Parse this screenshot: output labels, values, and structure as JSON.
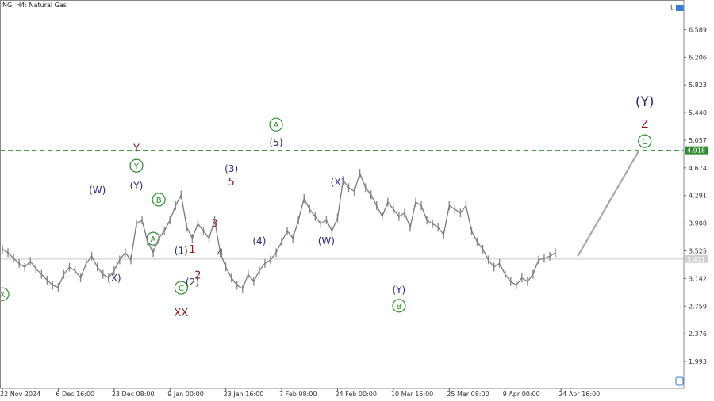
{
  "chart_data": {
    "type": "line",
    "title": "NG, H4:  Natural Gas",
    "ylim": [
      1.62,
      7.0
    ],
    "yticks": [
      "6.589",
      "6.206",
      "5.823",
      "5.440",
      "5.057",
      "4.674",
      "4.291",
      "3.908",
      "3.525",
      "3.142",
      "2.759",
      "2.376",
      "1.993"
    ],
    "xticks": [
      "22 Nov 2024",
      "6 Dec 16:00",
      "23 Dec 08:00",
      "9 Jan 00:00",
      "23 Jan 16:00",
      "7 Feb 08:00",
      "24 Feb 00:00",
      "10 Mar 16:00",
      "25 Mar 08:00",
      "9 Apr 00:00",
      "24 Apr 16:00"
    ],
    "xtick_index": [
      0,
      10,
      20,
      30,
      40,
      50,
      60,
      70,
      80,
      90,
      100
    ],
    "x_max_index": 122,
    "series": [
      {
        "values": [
          3.55,
          3.5,
          3.42,
          3.35,
          3.3,
          3.38,
          3.28,
          3.2,
          3.12,
          3.05,
          3.02,
          3.2,
          3.3,
          3.25,
          3.15,
          3.35,
          3.45,
          3.3,
          3.2,
          3.15,
          3.25,
          3.4,
          3.5,
          3.4,
          3.9,
          3.95,
          3.65,
          3.5,
          3.7,
          3.8,
          3.95,
          4.15,
          4.3,
          3.85,
          3.7,
          3.9,
          3.8,
          3.7,
          3.95,
          3.5,
          3.3,
          3.15,
          3.05,
          3.0,
          3.2,
          3.1,
          3.25,
          3.35,
          3.4,
          3.5,
          3.65,
          3.8,
          3.7,
          3.95,
          4.25,
          4.1,
          4.0,
          3.9,
          3.95,
          3.8,
          3.98,
          4.5,
          4.4,
          4.35,
          4.6,
          4.4,
          4.3,
          4.15,
          4.0,
          4.2,
          4.1,
          4.0,
          4.05,
          3.85,
          4.2,
          4.15,
          3.95,
          3.9,
          3.85,
          3.75,
          4.15,
          4.1,
          4.05,
          4.15,
          3.8,
          3.65,
          3.55,
          3.4,
          3.3,
          3.35,
          3.2,
          3.1,
          3.05,
          3.15,
          3.1,
          3.2,
          3.4,
          3.42,
          3.45,
          3.5
        ]
      }
    ],
    "projection": {
      "from_index": 103,
      "from": 3.45,
      "to_index": 114,
      "to": 4.918
    },
    "levels": [
      {
        "label": "4.918",
        "value": 4.918,
        "style": "dashed",
        "color": "#2e8b2e"
      },
      {
        "label": "3.411",
        "value": 3.411,
        "style": "solid",
        "color": "#c8c8c8"
      }
    ],
    "wave_labels": [
      {
        "text": "X",
        "circled": true,
        "color": "#2e8b2e",
        "i": 0,
        "v": 2.88
      },
      {
        "text": "(W)",
        "color": "#2b2b7a",
        "i": 17,
        "v": 4.32
      },
      {
        "text": "(X)",
        "color": "#2b2b7a",
        "i": 20,
        "v": 3.1
      },
      {
        "text": "Y",
        "color": "#8b1a1a",
        "i": 24,
        "v": 4.9
      },
      {
        "text": "Y",
        "circled": true,
        "color": "#2e8b2e",
        "i": 24,
        "v": 4.66
      },
      {
        "text": "(Y)",
        "color": "#2b2b7a",
        "i": 24,
        "v": 4.38
      },
      {
        "text": "B",
        "circled": true,
        "color": "#2e8b2e",
        "i": 28,
        "v": 4.19
      },
      {
        "text": "A",
        "circled": true,
        "color": "#2e8b2e",
        "i": 27,
        "v": 3.65
      },
      {
        "text": "(1)",
        "color": "#2b2b7a",
        "i": 32,
        "v": 3.48
      },
      {
        "text": "1",
        "color": "#8b1a1a",
        "i": 34,
        "v": 3.5
      },
      {
        "text": "2",
        "color": "#8b1a1a",
        "i": 35,
        "v": 3.14
      },
      {
        "text": "(2)",
        "color": "#2b2b7a",
        "i": 34,
        "v": 3.05
      },
      {
        "text": "C",
        "circled": true,
        "color": "#2e8b2e",
        "i": 32,
        "v": 2.97
      },
      {
        "text": "XX",
        "color": "#8b1a1a",
        "i": 32,
        "v": 2.62
      },
      {
        "text": "3",
        "color": "#8b1a1a",
        "i": 38,
        "v": 3.86
      },
      {
        "text": "4",
        "color": "#8b1a1a",
        "i": 39,
        "v": 3.45
      },
      {
        "text": "(3)",
        "color": "#2b2b7a",
        "i": 41,
        "v": 4.62
      },
      {
        "text": "5",
        "color": "#8b1a1a",
        "i": 41,
        "v": 4.43
      },
      {
        "text": "(4)",
        "color": "#2b2b7a",
        "i": 46,
        "v": 3.62
      },
      {
        "text": "A",
        "circled": true,
        "color": "#2e8b2e",
        "i": 49,
        "v": 5.23
      },
      {
        "text": "(5)",
        "color": "#2b2b7a",
        "i": 49,
        "v": 4.98
      },
      {
        "text": "(X)",
        "color": "#2b2b7a",
        "i": 60,
        "v": 4.43
      },
      {
        "text": "(W)",
        "color": "#2b2b7a",
        "i": 58,
        "v": 3.62
      },
      {
        "text": "(Y)",
        "color": "#2b2b7a",
        "i": 71,
        "v": 2.94
      },
      {
        "text": "B",
        "circled": true,
        "color": "#2e8b2e",
        "i": 71,
        "v": 2.72
      },
      {
        "text": "(Y)",
        "color": "#2b2b7a",
        "i": 115,
        "v": 5.53
      },
      {
        "text": "Z",
        "color": "#8b1a1a",
        "i": 115,
        "v": 5.23
      },
      {
        "text": "C",
        "circled": true,
        "color": "#2e8b2e",
        "i": 115,
        "v": 5.0
      }
    ]
  }
}
